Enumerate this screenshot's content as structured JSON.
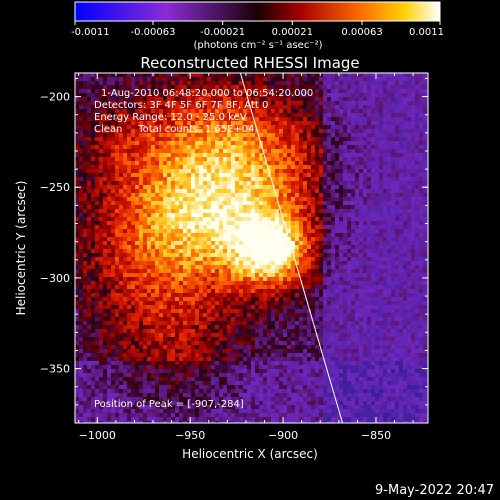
{
  "colorbar": {
    "tick_labels": [
      "-0.0011",
      "-0.00063",
      "-0.00021",
      "0.00021",
      "0.00063",
      "0.0011"
    ],
    "tick_values": [
      -0.0011,
      -0.00063,
      -0.00021,
      0.00021,
      0.00063,
      0.0011
    ],
    "range": [
      -0.0011,
      0.0011
    ],
    "units_label": "(photons cm⁻² s⁻¹ asec⁻²)"
  },
  "chart_data": {
    "type": "heatmap",
    "title": "Reconstructed RHESSI Image",
    "xlabel": "Heliocentric X (arcsec)",
    "ylabel": "Heliocentric Y (arcsec)",
    "xlim": [
      -1012,
      -822
    ],
    "ylim": [
      -380,
      -187
    ],
    "x_ticks": [
      -1000,
      -950,
      -900,
      -850
    ],
    "x_tick_labels": [
      "−1000",
      "−950",
      "−900",
      "−850"
    ],
    "y_ticks": [
      -200,
      -250,
      -300,
      -350
    ],
    "y_tick_labels": [
      "−200",
      "−250",
      "−300",
      "−350"
    ],
    "peak_position": [
      -907,
      -284
    ],
    "limb_line": [
      [
        -923,
        -187
      ],
      [
        -868,
        -380
      ]
    ],
    "annotations": [
      "1-Aug-2010 06:48:20.000 to 06:54:20.000",
      "Detectors: 3F 4F 5F 6F 7F 8F, Att 0",
      "Energy Range: 12.0 - 25.0 keV",
      "Clean     Total counts: 1.65E+04"
    ],
    "peak_label": "Position of Peak = [-907,-284]"
  },
  "footer": {
    "timestamp": "9-May-2022 20:47"
  }
}
